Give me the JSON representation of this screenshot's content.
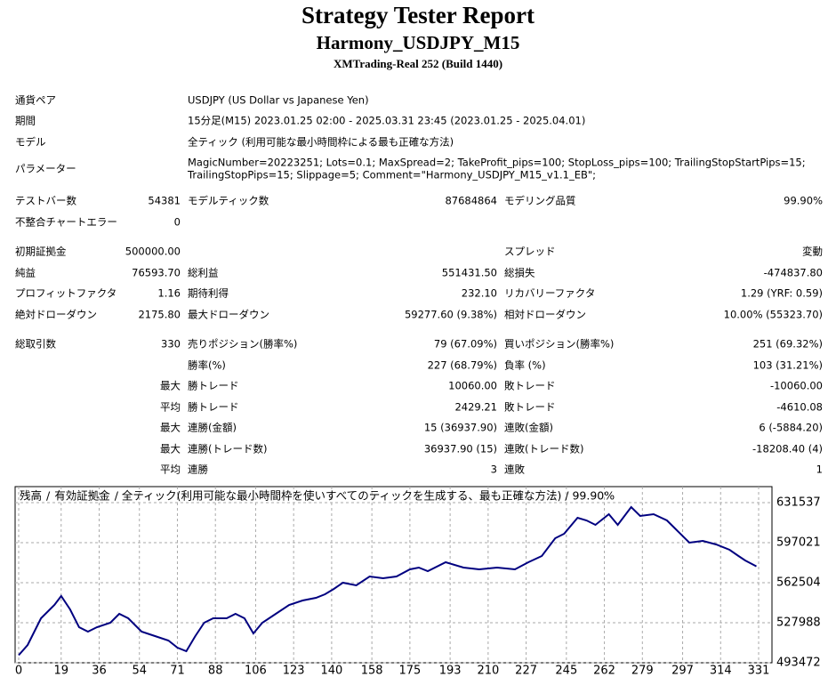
{
  "header": {
    "title": "Strategy Tester Report",
    "subtitle": "Harmony_USDJPY_M15",
    "server": "XMTrading-Real 252 (Build 1440)"
  },
  "info": [
    [
      "通貨ペア",
      "USDJPY (US Dollar vs Japanese Yen)"
    ],
    [
      "期間",
      "15分足(M15) 2023.01.25 02:00 - 2025.03.31 23:45 (2023.01.25 - 2025.04.01)"
    ],
    [
      "モデル",
      "全ティック (利用可能な最小時間枠による最も正確な方法)"
    ],
    [
      "パラメーター",
      [
        "MagicNumber=20223251; Lots=0.1; MaxSpread=2; TakeProfit_pips=100; StopLoss_pips=100; TrailingStopStartPips=15;",
        "TrailingStopPips=15; Slippage=5; Comment=\"Harmony_USDJPY_M15_v1.1_EB\";"
      ]
    ]
  ],
  "stats": [
    [
      "テストバー数",
      "54381",
      "モデルティック数",
      "87684864",
      "モデリング品質",
      "99.90%"
    ],
    [
      "不整合チャートエラー",
      "0",
      null,
      null,
      null,
      null
    ],
    [
      "初期証拠金",
      "500000.00",
      null,
      null,
      "スプレッド",
      "変動"
    ],
    [
      "純益",
      "76593.70",
      "総利益",
      "551431.50",
      "総損失",
      "-474837.80"
    ],
    [
      "プロフィットファクタ",
      "1.16",
      "期待利得",
      "232.10",
      "リカバリーファクタ",
      "1.29 (YRF: 0.59)"
    ],
    [
      "絶対ドローダウン",
      "2175.80",
      "最大ドローダウン",
      "59277.60 (9.38%)",
      "相対ドローダウン",
      "10.00% (55323.70)"
    ],
    [
      "総取引数",
      "330",
      "売りポジション(勝率%)",
      "79 (67.09%)",
      "買いポジション(勝率%)",
      "251 (69.32%)"
    ],
    [
      null,
      null,
      "勝率(%)",
      "227 (68.79%)",
      "負率 (%)",
      "103 (31.21%)"
    ],
    [
      null,
      "最大",
      "勝トレード",
      "10060.00",
      "敗トレード",
      "-10060.00"
    ],
    [
      null,
      "平均",
      "勝トレード",
      "2429.21",
      "敗トレード",
      "-4610.08"
    ],
    [
      null,
      "最大",
      "連勝(金額)",
      "15 (36937.90)",
      "連敗(金額)",
      "6 (-5884.20)"
    ],
    [
      null,
      "最大",
      "連勝(トレード数)",
      "36937.90 (15)",
      "連敗(トレード数)",
      "-18208.40 (4)"
    ],
    [
      null,
      "平均",
      "連勝",
      "3",
      "連敗",
      "1"
    ]
  ],
  "chart_data": {
    "type": "line",
    "legend": [
      {
        "label": "残高",
        "color": "#000080"
      },
      {
        "label": "有効証拠金",
        "color": "#008000"
      }
    ],
    "separator": "/",
    "title": "/ 全ティック(利用可能な最小時間枠を使いすべてのティックを生成する、最も正確な方法) / 99.90%",
    "x": [
      0,
      4,
      10,
      16,
      19,
      23,
      27,
      31,
      35,
      41,
      45,
      49,
      55,
      61,
      67,
      71,
      75,
      79,
      83,
      87,
      93,
      97,
      101,
      105,
      109,
      115,
      121,
      127,
      133,
      137,
      141,
      145,
      151,
      157,
      163,
      169,
      175,
      179,
      183,
      191,
      199,
      206,
      214,
      222,
      228,
      234,
      240,
      244,
      250,
      254,
      258,
      264,
      268,
      274,
      278,
      284,
      290,
      294,
      300,
      306,
      312,
      318,
      322,
      325,
      330
    ],
    "series": [
      {
        "name": "残高",
        "color": "#000080",
        "values": [
          500000,
          508817,
          531827,
          543332,
          551002,
          539497,
          524157,
          520322,
          524157,
          527992,
          535662,
          531827,
          520322,
          516487,
          512652,
          506516,
          503448,
          516487,
          527992,
          531827,
          531827,
          535662,
          531827,
          518788,
          527992,
          535662,
          543332,
          547167,
          549468,
          552536,
          557138,
          562507,
          560206,
          567876,
          566342,
          567876,
          574012,
          575546,
          572478,
          580148,
          575546,
          574012,
          575546,
          574012,
          580148,
          585517,
          600857,
          604692,
          618498,
          616197,
          612362,
          621566,
          612362,
          627702,
          620032,
          621566,
          616197,
          608527,
          597022,
          598556,
          595488,
          590886,
          585517,
          581682,
          576594
        ]
      }
    ],
    "xlim": [
      0,
      331
    ],
    "xticks": [
      0,
      19,
      36,
      54,
      71,
      88,
      106,
      123,
      140,
      158,
      175,
      193,
      210,
      227,
      245,
      262,
      279,
      297,
      314,
      331
    ],
    "ylim": [
      493472,
      645343
    ],
    "yticks": [
      493472,
      527988,
      562504,
      597021,
      631537
    ],
    "grid": true
  }
}
